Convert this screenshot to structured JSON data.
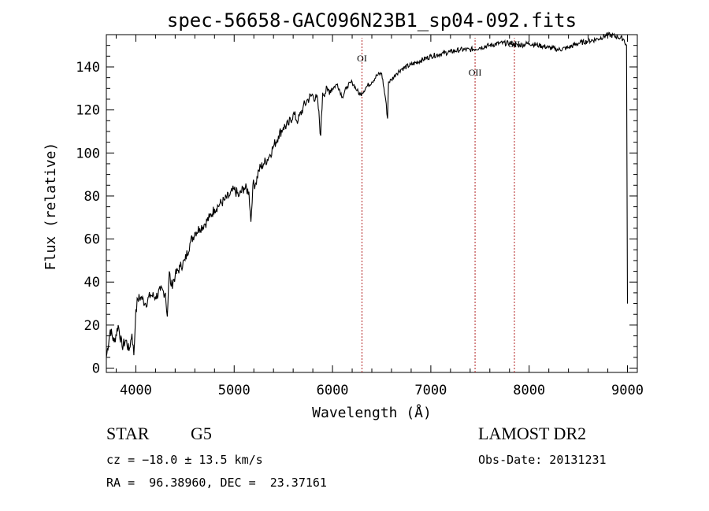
{
  "chart_data": {
    "type": "line",
    "title": "spec-56658-GAC096N23B1_sp04-092.fits",
    "xlabel": "Wavelength (Å)",
    "ylabel": "Flux (relative)",
    "xlim": [
      3700,
      9100
    ],
    "ylim": [
      -2,
      155
    ],
    "xticks": [
      4000,
      5000,
      6000,
      7000,
      8000,
      9000
    ],
    "yticks": [
      0,
      20,
      40,
      60,
      80,
      100,
      120,
      140
    ],
    "grid": false,
    "series": [
      {
        "x": [
          3700,
          3740,
          3780,
          3820,
          3860,
          3900,
          3930,
          3960,
          3980,
          4000,
          4020,
          4050,
          4100,
          4150,
          4200,
          4250,
          4300,
          4320,
          4340,
          4360,
          4400,
          4450,
          4500,
          4550,
          4600,
          4650,
          4700,
          4750,
          4800,
          4850,
          4900,
          4950,
          5000,
          5050,
          5100,
          5150,
          5170,
          5190,
          5220,
          5250,
          5300,
          5350,
          5400,
          5450,
          5500,
          5550,
          5600,
          5650,
          5700,
          5750,
          5800,
          5850,
          5880,
          5900,
          5950,
          6000,
          6050,
          6100,
          6150,
          6200,
          6250,
          6280,
          6300,
          6350,
          6400,
          6450,
          6500,
          6540,
          6560,
          6570,
          6600,
          6650,
          6700,
          6800,
          6900,
          7000,
          7100,
          7200,
          7300,
          7400,
          7500,
          7600,
          7700,
          7800,
          7900,
          8000,
          8100,
          8200,
          8300,
          8400,
          8500,
          8600,
          8700,
          8800,
          8900,
          8960,
          8990,
          9000
        ],
        "y": [
          5,
          18,
          12,
          20,
          10,
          13,
          8,
          16,
          6,
          27,
          32,
          33,
          30,
          34,
          33,
          36,
          35,
          24,
          45,
          38,
          43,
          47,
          50,
          58,
          63,
          65,
          67,
          70,
          74,
          76,
          78,
          80,
          83,
          80,
          84,
          82,
          68,
          85,
          86,
          92,
          95,
          98,
          103,
          108,
          112,
          113,
          118,
          115,
          121,
          125,
          127,
          124,
          108,
          128,
          129,
          130,
          132,
          126,
          131,
          133,
          129,
          127,
          128,
          131,
          133,
          136,
          137,
          125,
          116,
          133,
          134,
          137,
          139,
          141,
          143,
          145,
          146,
          147,
          148,
          148,
          149,
          150,
          151,
          151,
          150,
          151,
          150,
          149,
          148,
          149,
          151,
          152,
          153,
          155,
          154,
          153,
          150,
          30
        ]
      }
    ],
    "annotations": [
      {
        "label": "OI",
        "x": 6300
      },
      {
        "label": "OII",
        "x": 7450
      },
      {
        "label": "SII",
        "x": 7850
      }
    ]
  },
  "info": {
    "class": "STAR",
    "subclass": "G5",
    "survey": "LAMOST DR2",
    "cz": "cz = −18.0 ± 13.5 km/s",
    "obs_date": "Obs-Date: 20131231",
    "coords": "RA =  96.38960, DEC =  23.37161"
  }
}
